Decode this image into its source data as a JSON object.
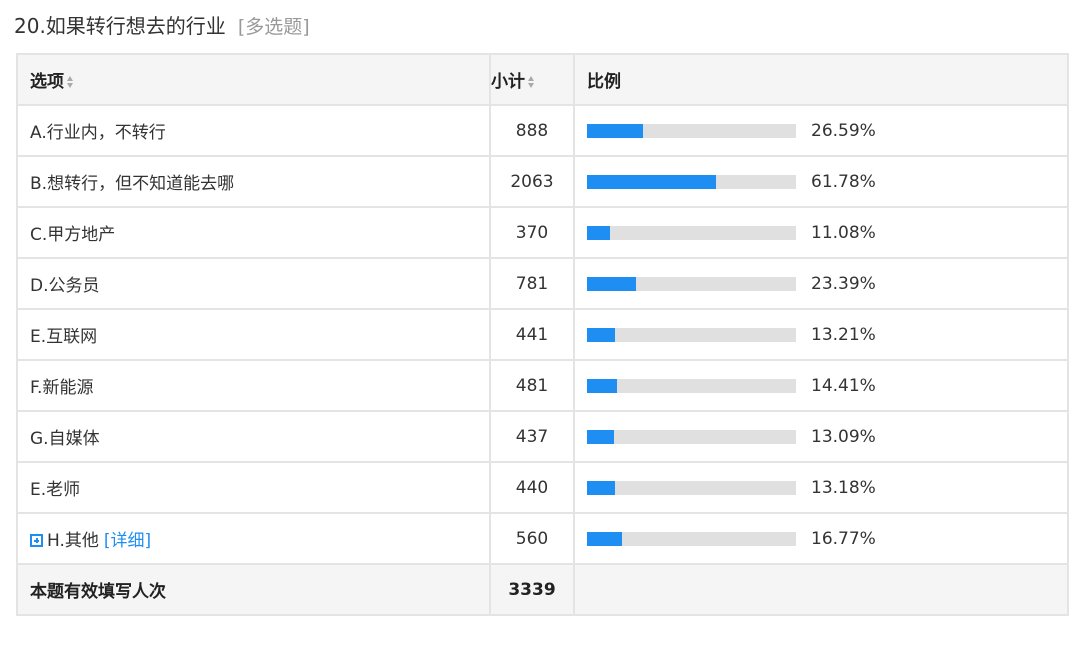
{
  "question": {
    "title": "20.如果转行想去的行业",
    "type_label": "[多选题]"
  },
  "table": {
    "headers": {
      "option": "选项",
      "count": "小计",
      "ratio": "比例"
    },
    "rows": [
      {
        "label": "A.行业内，不转行",
        "count": "888",
        "percent_text": "26.59%",
        "percent": 26.59
      },
      {
        "label": "B.想转行，但不知道能去哪",
        "count": "2063",
        "percent_text": "61.78%",
        "percent": 61.78
      },
      {
        "label": "C.甲方地产",
        "count": "370",
        "percent_text": "11.08%",
        "percent": 11.08
      },
      {
        "label": "D.公务员",
        "count": "781",
        "percent_text": "23.39%",
        "percent": 23.39
      },
      {
        "label": "E.互联网",
        "count": "441",
        "percent_text": "13.21%",
        "percent": 13.21
      },
      {
        "label": "F.新能源",
        "count": "481",
        "percent_text": "14.41%",
        "percent": 14.41
      },
      {
        "label": "G.自媒体",
        "count": "437",
        "percent_text": "13.09%",
        "percent": 13.09
      },
      {
        "label": "E.老师",
        "count": "440",
        "percent_text": "13.18%",
        "percent": 13.18
      },
      {
        "label": "H.其他",
        "count": "560",
        "percent_text": "16.77%",
        "percent": 16.77,
        "expandable": true,
        "detail_link": "[详细]"
      }
    ],
    "footer": {
      "label": "本题有效填写人次",
      "count": "3339"
    }
  },
  "colors": {
    "bar_fill": "#1e8ef2",
    "bar_track": "#e0e0e0",
    "link": "#1e8ef2"
  }
}
